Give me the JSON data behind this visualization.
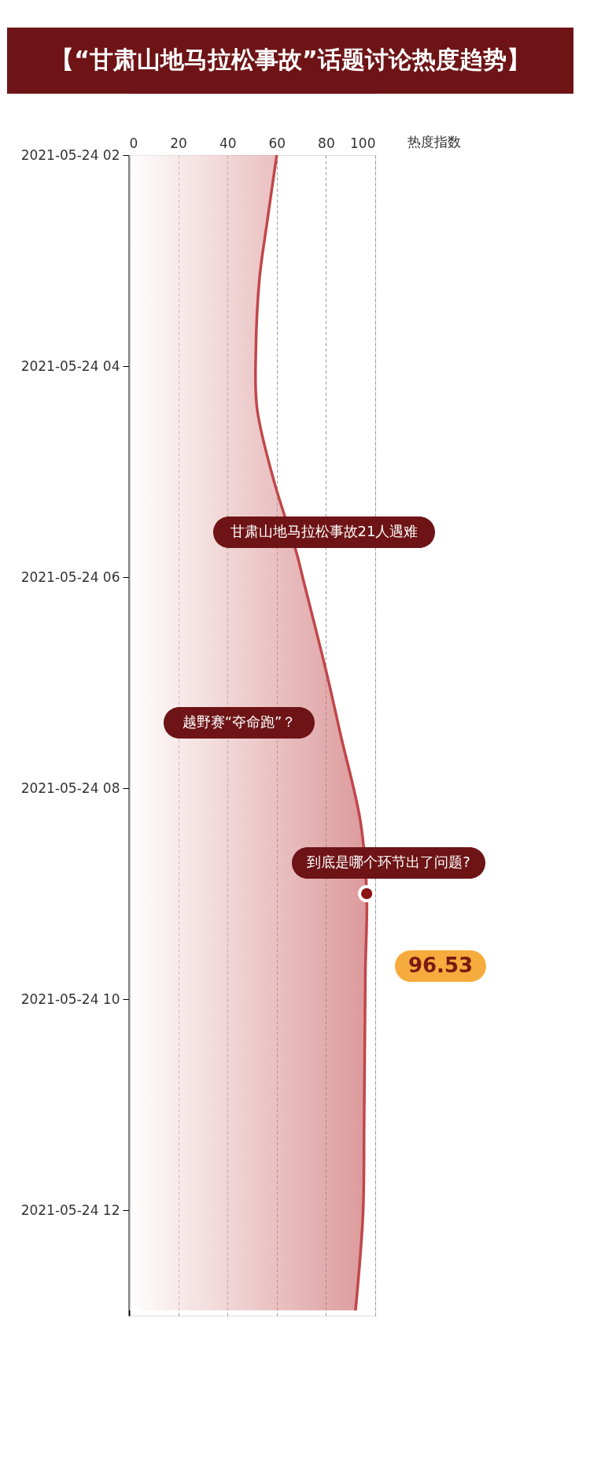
{
  "chart_data": {
    "type": "area",
    "orientation": "horizontal",
    "title": "【“甘肃山地马拉松事故”话题讨论热度趋势】",
    "xlabel": "热度指数",
    "x": [
      "2021-05-24T02:00",
      "2021-05-24T02:39",
      "2021-05-24T03:10",
      "2021-05-24T03:52",
      "2021-05-24T04:24",
      "2021-05-24T05:06",
      "2021-05-24T05:46",
      "2021-05-24T06:00",
      "2021-05-24T06:56",
      "2021-05-24T07:30",
      "2021-05-24T08:19",
      "2021-05-24T09:00",
      "2021-05-24T09:44",
      "2021-05-24T11:08",
      "2021-05-24T12:03",
      "2021-05-24T12:57"
    ],
    "series": [
      {
        "color": "#c0474a",
        "values": [
          60,
          56,
          53,
          51.5,
          52,
          59,
          68,
          70.5,
          80.5,
          86,
          94,
          96.53,
          96,
          95.5,
          95,
          92
        ]
      },
      {
        "type": "scatter",
        "marker": "circle",
        "color": "#8c1414",
        "x": [
          "2021-05-24T09:00"
        ],
        "values": [
          96.53
        ]
      }
    ],
    "xlim": [
      0,
      100
    ],
    "xticks": [
      0,
      20,
      40,
      60,
      80,
      100
    ],
    "ylim": [
      "2021-05-24T13:00",
      "2021-05-24T02:00"
    ],
    "yticks": [
      {
        "value": "2021-05-24T02:00",
        "label": "2021-05-24 02"
      },
      {
        "value": "2021-05-24T04:00",
        "label": "2021-05-24 04"
      },
      {
        "value": "2021-05-24T06:00",
        "label": "2021-05-24 06"
      },
      {
        "value": "2021-05-24T08:00",
        "label": "2021-05-24 08"
      },
      {
        "value": "2021-05-24T10:00",
        "label": "2021-05-24 10"
      },
      {
        "value": "2021-05-24T12:00",
        "label": "2021-05-24 12"
      }
    ],
    "grid": "x",
    "marker": "none",
    "line_style": "solid",
    "annotations": [
      "甘肃山地马拉松事故21人遇难",
      "越野赛“夺命跑”？",
      "到底是哪个环节出了问题?",
      "96.53"
    ]
  }
}
